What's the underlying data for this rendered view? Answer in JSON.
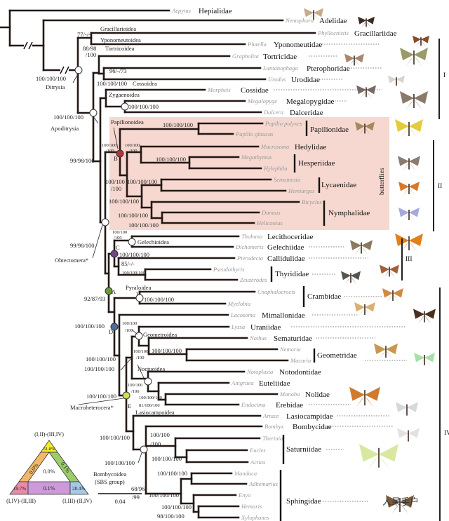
{
  "leaves": [
    {
      "genus": "Aepytus",
      "family": "Hepialidae"
    },
    {
      "genus": "Nemophora",
      "family": "Adelidae"
    },
    {
      "genus": "Phyllocnistis",
      "family": "Gracillariidae"
    },
    {
      "genus": "Plutella",
      "family": "Yponomeutidae"
    },
    {
      "genus": "Grapholita",
      "family": "Tortricidae"
    },
    {
      "genus": "Lantanophaga",
      "family": "Pterophoridae"
    },
    {
      "genus": "Urodus",
      "family": "Urodidae"
    },
    {
      "genus": "Morpheis",
      "family": "Cossidae"
    },
    {
      "genus": "Megalopyge",
      "family": "Megalopygidae"
    },
    {
      "genus": "Dalcera",
      "family": "Dalceridae"
    },
    {
      "genus": "Papilio polyxes",
      "family": ""
    },
    {
      "genus": "Papilio glaucus",
      "family": ""
    },
    {
      "genus": "Macrosoma",
      "family": "Hedylidae"
    },
    {
      "genus": "Megathymus",
      "family": ""
    },
    {
      "genus": "Hylephila",
      "family": ""
    },
    {
      "genus": "Semomesia",
      "family": ""
    },
    {
      "genus": "Hemiargus",
      "family": ""
    },
    {
      "genus": "Bicyclus",
      "family": ""
    },
    {
      "genus": "Danaus",
      "family": ""
    },
    {
      "genus": "Heliconius",
      "family": ""
    },
    {
      "genus": "Thubana",
      "family": "Lecithoceridae"
    },
    {
      "genus": "Dichomeris",
      "family": "Gelechiidae"
    },
    {
      "genus": "Pterodecta",
      "family": "Callidulidae"
    },
    {
      "genus": "Pseudothyris",
      "family": ""
    },
    {
      "genus": "Zeuzerodes",
      "family": ""
    },
    {
      "genus": "Cnaphalocrocis",
      "family": ""
    },
    {
      "genus": "Myelobia",
      "family": ""
    },
    {
      "genus": "Lacosoma",
      "family": "Mimallonidae"
    },
    {
      "genus": "Lyssa",
      "family": "Uraniidae"
    },
    {
      "genus": "Nothus",
      "family": "Sematuridae"
    },
    {
      "genus": "Nemoria",
      "family": ""
    },
    {
      "genus": "Macaria",
      "family": ""
    },
    {
      "genus": "Notoplusia",
      "family": "Notodontidae"
    },
    {
      "genus": "Anigraea",
      "family": "Euteliidae"
    },
    {
      "genus": "Manoba",
      "family": "Nolidae"
    },
    {
      "genus": "Endocima",
      "family": "Erebidae"
    },
    {
      "genus": "Artace",
      "family": "Lasiocampidae"
    },
    {
      "genus": "Bombyx",
      "family": "Bombycidae"
    },
    {
      "genus": "Therinia",
      "family": ""
    },
    {
      "genus": "Eucles",
      "family": ""
    },
    {
      "genus": "Actias",
      "family": ""
    },
    {
      "genus": "Manduca",
      "family": ""
    },
    {
      "genus": "Adhemarius",
      "family": ""
    },
    {
      "genus": "Enyo",
      "family": ""
    },
    {
      "genus": "Hemaris",
      "family": ""
    },
    {
      "genus": "Xylophanes",
      "family": ""
    }
  ],
  "grouped_families": [
    "Papilionidae",
    "Hesperiidae",
    "Lycaenidae",
    "Nymphalidae",
    "Thyrididae",
    "Crambidae",
    "Geometridae",
    "Saturniidae",
    "Sphingidae"
  ],
  "labels": [
    "77/-/-",
    "Gracillarioidea",
    "Yponomeutoidea",
    "88/98",
    "/100",
    "Tortricoidea",
    "96/-/73",
    "100/100/100",
    "Ditrysia",
    "100/100/100",
    "Cossoidea",
    "Zygaenoidea",
    "100/100/100",
    "100/100/100",
    "Apoditrysia",
    "Papilionoidea",
    "100/100/100",
    "100/100",
    "/100",
    "100/100",
    "/100",
    "B",
    "100/100/100",
    "99/98/100",
    "100/100",
    "/100",
    "100/100/100",
    "100/100/100",
    "100/100/100",
    "100/100/100",
    "99/98/100",
    "Obtectomera*",
    "100/100",
    "/100",
    "Gelechioidea",
    "C",
    "100/100/100",
    "85/-/-",
    "100/100/100",
    "Pyraloidea",
    "100/100/100",
    "92/87/93",
    "A",
    "100/100/100",
    "D",
    "100/100",
    "/100",
    "Geometroidea",
    "100/100",
    "/100",
    "100/100/100",
    "100/100/100",
    "100/100/100",
    "Noctuoidea",
    "100/100",
    "/100",
    "100/100/100",
    "81/100/100",
    "100/100/100",
    "E",
    "Macroheterocera*",
    "Lasiocampoidea",
    "100/100/100",
    "100/100",
    "/100",
    "100/100/100",
    "Bombycoidea",
    "(SBS group)",
    "68/96",
    "/99",
    "100/100/100",
    "100/100/100",
    "100/100/100",
    "100/100/100",
    "98/100/100"
  ],
  "butterflies_label": "butterflies",
  "clades": [
    "I",
    "II",
    "III",
    "IV"
  ],
  "scale_bar": "0.04",
  "triangle": {
    "top_label": "(I,II)-(III,IV)",
    "left_label": "(I,IV)-(II,III)",
    "right_label": "(I,III)-(II,IV)",
    "top_value": "51.8%",
    "left_band": "0.0%",
    "right_band": "0.1%",
    "center": "0.0%",
    "bottom_left": "19.7%",
    "bottom_mid": "0.1%",
    "bottom_right": "28.4%"
  },
  "watermark": "人呆手户",
  "colors": {
    "node_B": "#b8323a",
    "node_C": "#6e4a82",
    "node_A": "#6a9a3a",
    "node_D": "#4d6e9c",
    "node_E": "#d2df52",
    "butterfly_box": "#f6d8d0"
  }
}
